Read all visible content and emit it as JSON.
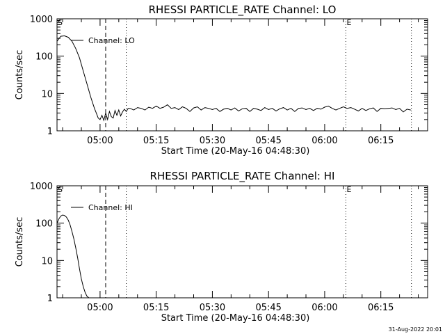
{
  "chart_data": [
    {
      "type": "line",
      "title": "RHESSI PARTICLE_RATE Channel: LO",
      "xlabel": "Start Time (20-May-16 04:48:30)",
      "ylabel": "Counts/sec",
      "yscale": "log",
      "ylim": [
        1,
        1000
      ],
      "xlim": [
        "04:48:30",
        "06:27:30"
      ],
      "x_ticks": [
        "05:00",
        "05:15",
        "05:30",
        "05:45",
        "06:00",
        "06:15"
      ],
      "y_ticks": [
        "1",
        "10",
        "100",
        "1000"
      ],
      "legend": "Channel: LO",
      "legend_position": "top-left",
      "markers": [
        {
          "label": "S",
          "time": "04:48:30",
          "style": "dotted"
        },
        {
          "label": "",
          "time": "05:01:30",
          "style": "dashed"
        },
        {
          "label": "",
          "time": "05:07:00",
          "style": "dotted"
        },
        {
          "label": "E",
          "time": "06:05:40",
          "style": "dotted"
        },
        {
          "label": "",
          "time": "06:23:10",
          "style": "dotted"
        }
      ],
      "series": [
        {
          "x": [
            "04:48:30",
            "04:49:30",
            "04:50:30",
            "04:51:30",
            "04:52:30",
            "04:53:30",
            "04:54:30",
            "04:55:30",
            "04:56:30",
            "04:57:30",
            "04:58:30",
            "04:59:00",
            "04:59:30",
            "05:00:00",
            "05:00:30",
            "05:01:00",
            "05:01:30",
            "05:02:00",
            "05:02:30",
            "05:03:00",
            "05:03:30",
            "05:04:00",
            "05:04:30",
            "05:05:00",
            "05:05:30",
            "05:06:00",
            "05:06:30",
            "05:07:00",
            "05:07:30",
            "05:08:00",
            "05:09:00",
            "05:10:00",
            "05:11:00",
            "05:12:00",
            "05:13:00",
            "05:14:00",
            "05:15:00",
            "05:16:00",
            "05:17:00",
            "05:18:00",
            "05:19:00",
            "05:20:00",
            "05:21:00",
            "05:22:00",
            "05:23:00",
            "05:24:00",
            "05:25:00",
            "05:26:00",
            "05:27:00",
            "05:28:00",
            "05:29:00",
            "05:30:00",
            "05:31:00",
            "05:32:00",
            "05:33:00",
            "05:34:00",
            "05:35:00",
            "05:36:00",
            "05:37:00",
            "05:38:00",
            "05:39:00",
            "05:40:00",
            "05:41:00",
            "05:42:00",
            "05:43:00",
            "05:44:00",
            "05:45:00",
            "05:46:00",
            "05:47:00",
            "05:48:00",
            "05:49:00",
            "05:50:00",
            "05:51:00",
            "05:52:00",
            "05:53:00",
            "05:54:00",
            "05:55:00",
            "05:56:00",
            "05:57:00",
            "05:58:00",
            "05:59:00",
            "06:00:00",
            "06:01:00",
            "06:02:00",
            "06:03:00",
            "06:04:00",
            "06:05:00",
            "06:06:00",
            "06:07:00",
            "06:08:00",
            "06:09:00",
            "06:10:00",
            "06:11:00",
            "06:12:00",
            "06:13:00",
            "06:14:00",
            "06:15:00",
            "06:16:00",
            "06:17:00",
            "06:18:00",
            "06:19:00",
            "06:20:00",
            "06:21:00",
            "06:22:00",
            "06:23:00"
          ],
          "y": [
            250,
            340,
            350,
            320,
            250,
            160,
            90,
            40,
            18,
            8,
            4,
            3,
            2.2,
            2,
            2.6,
            1.9,
            3,
            2,
            3.3,
            2.4,
            2.2,
            3.5,
            2.6,
            3.6,
            2.5,
            3.2,
            3.8,
            3.3,
            4,
            4,
            3.6,
            4.2,
            4,
            3.6,
            4.3,
            4,
            4.6,
            4,
            4.3,
            5,
            4,
            4.2,
            3.7,
            4.4,
            4,
            3.3,
            4.1,
            4.4,
            3.6,
            4.2,
            4,
            3.7,
            4,
            3.3,
            3.8,
            4,
            3.6,
            4.1,
            3.4,
            3.9,
            4,
            3.3,
            4,
            3.8,
            3.5,
            4.2,
            3.7,
            4,
            3.4,
            3.9,
            4.2,
            3.6,
            4,
            3.3,
            4,
            4.1,
            3.7,
            4,
            3.5,
            4,
            3.8,
            4.3,
            4.6,
            4,
            3.6,
            4,
            4.4,
            4,
            4.2,
            3.8,
            3.4,
            4,
            3.5,
            3.9,
            4.1,
            3.3,
            4,
            3.9,
            4,
            4.1,
            3.7,
            4,
            3.2,
            3.8,
            3.6
          ]
        }
      ]
    },
    {
      "type": "line",
      "title": "RHESSI PARTICLE_RATE Channel: HI",
      "xlabel": "Start Time (20-May-16 04:48:30)",
      "ylabel": "Counts/sec",
      "yscale": "log",
      "ylim": [
        1,
        1000
      ],
      "xlim": [
        "04:48:30",
        "06:27:30"
      ],
      "x_ticks": [
        "05:00",
        "05:15",
        "05:30",
        "05:45",
        "06:00",
        "06:15"
      ],
      "y_ticks": [
        "1",
        "10",
        "100",
        "1000"
      ],
      "legend": "Channel: HI",
      "legend_position": "top-left",
      "markers": [
        {
          "label": "S",
          "time": "04:48:30",
          "style": "dotted"
        },
        {
          "label": "",
          "time": "05:01:30",
          "style": "dashed"
        },
        {
          "label": "",
          "time": "05:07:00",
          "style": "dotted"
        },
        {
          "label": "E",
          "time": "06:05:40",
          "style": "dotted"
        },
        {
          "label": "",
          "time": "06:23:10",
          "style": "dotted"
        }
      ],
      "series": [
        {
          "x": [
            "04:48:30",
            "04:49:00",
            "04:49:30",
            "04:50:00",
            "04:50:30",
            "04:51:00",
            "04:51:30",
            "04:52:00",
            "04:52:30",
            "04:53:00",
            "04:53:30",
            "04:54:00",
            "04:54:30",
            "04:55:00",
            "04:55:30",
            "04:56:00",
            "04:56:30",
            "04:57:00"
          ],
          "y": [
            100,
            130,
            155,
            165,
            160,
            145,
            120,
            90,
            60,
            38,
            22,
            12,
            6,
            3.2,
            2,
            1.4,
            1.1,
            1
          ]
        }
      ]
    }
  ],
  "footer": {
    "stamp": "31-Aug-2022 20:01"
  }
}
